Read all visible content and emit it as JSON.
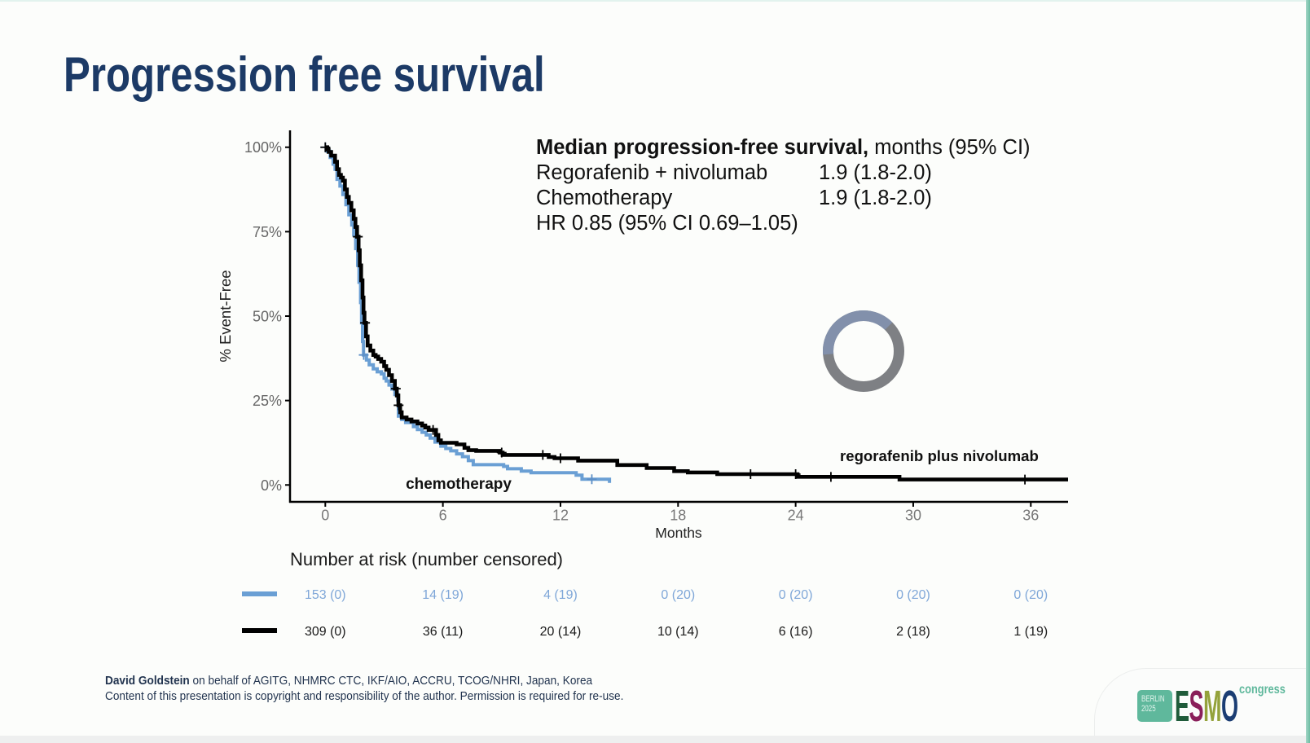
{
  "chart_data": {
    "type": "line",
    "subtype": "kaplan-meier",
    "title": "Progression free survival",
    "xlabel": "Months",
    "ylabel": "% Event-Free",
    "xlim": [
      -1.8,
      37.9
    ],
    "ylim": [
      -5,
      105
    ],
    "grid": false,
    "xtick_values": [
      0,
      6,
      12,
      18,
      24,
      30,
      36
    ],
    "xticks": [
      "0",
      "6",
      "12",
      "18",
      "24",
      "30",
      "36"
    ],
    "ytick_values": [
      0,
      25,
      50,
      75,
      100
    ],
    "yticks": [
      "0%",
      "25%",
      "50%",
      "75%",
      "100%"
    ],
    "series": [
      {
        "name": "chemotherapy",
        "color": "#6a9fd4",
        "x": [
          0,
          0.1,
          0.25,
          0.4,
          0.5,
          0.6,
          0.75,
          0.9,
          1.05,
          1.2,
          1.35,
          1.45,
          1.55,
          1.65,
          1.72,
          1.8,
          1.85,
          1.9,
          1.95,
          2.1,
          2.24,
          2.45,
          2.65,
          2.86,
          3.0,
          3.11,
          3.25,
          3.4,
          3.55,
          3.7,
          3.73,
          3.9,
          4.1,
          4.5,
          4.7,
          4.94,
          5.15,
          5.35,
          5.6,
          5.9,
          6.15,
          6.4,
          6.7,
          7.0,
          7.3,
          7.55,
          9.1,
          9.3,
          10.0,
          10.5,
          12.8,
          13.1,
          14.5
        ],
        "y": [
          100,
          98.8,
          97.0,
          95.0,
          93.5,
          90.5,
          88.5,
          86.0,
          83.0,
          80.0,
          77.0,
          74.0,
          70.0,
          65.0,
          60.0,
          54.0,
          48.0,
          42.5,
          38.5,
          37.0,
          35.6,
          34.4,
          33.5,
          32.9,
          31.6,
          30.8,
          29.6,
          28.4,
          26.8,
          25.2,
          20.4,
          19.4,
          18.5,
          17.3,
          16.4,
          15.6,
          14.8,
          13.9,
          12.7,
          11.5,
          10.8,
          10.1,
          9.2,
          8.4,
          7.2,
          6.0,
          5.5,
          4.8,
          4.1,
          3.6,
          2.9,
          1.7,
          0.6
        ],
        "end_x": 14.5,
        "censor_times": [
          0,
          1.96,
          13.6
        ]
      },
      {
        "name": "regorafenib plus nivolumab",
        "color": "#000000",
        "x": [
          0,
          0.1,
          0.17,
          0.3,
          0.5,
          0.6,
          0.7,
          0.8,
          0.9,
          1.0,
          1.1,
          1.2,
          1.33,
          1.45,
          1.54,
          1.62,
          1.7,
          1.76,
          1.83,
          1.9,
          1.95,
          2.0,
          2.08,
          2.16,
          2.3,
          2.45,
          2.57,
          2.7,
          2.85,
          3.0,
          3.11,
          3.25,
          3.4,
          3.55,
          3.65,
          3.73,
          3.82,
          3.9,
          4.15,
          4.4,
          4.7,
          4.94,
          5.1,
          5.27,
          5.65,
          5.77,
          5.9,
          6.7,
          7.1,
          7.3,
          7.7,
          8.9,
          9.05,
          11.4,
          11.7,
          12.9,
          14.9,
          16.4,
          17.8,
          18.5,
          20.0,
          24.1,
          29.3
        ],
        "y": [
          100,
          99.3,
          98.6,
          97.5,
          95.7,
          93.5,
          91.8,
          91.0,
          90.1,
          87.5,
          85.3,
          83.5,
          81.3,
          78.8,
          76.4,
          73.5,
          69.5,
          65.0,
          60.6,
          55.5,
          51.0,
          48.0,
          44.0,
          41.3,
          39.8,
          38.5,
          38.0,
          37.3,
          36.5,
          35.2,
          34.1,
          32.5,
          30.8,
          28.5,
          26.5,
          23.6,
          21.5,
          20.0,
          19.4,
          18.8,
          18.2,
          17.6,
          17.0,
          16.3,
          14.8,
          13.2,
          12.5,
          12.0,
          11.0,
          10.3,
          10.1,
          9.6,
          8.9,
          8.3,
          7.9,
          7.2,
          5.9,
          5.0,
          4.1,
          3.7,
          3.2,
          2.4,
          1.6
        ],
        "end_x": 37.9,
        "censor_times": [
          0,
          1.66,
          2.03,
          3.6,
          3.74,
          5.5,
          9.0,
          11.1,
          12.0,
          21.7,
          24.0,
          25.8,
          35.7
        ]
      }
    ],
    "annotation": {
      "heading_bold": "Median progression-free survival,",
      "heading_rest": " months (95% CI)",
      "rows": [
        {
          "label": "Regorafenib + nivolumab",
          "value": "1.9 (1.8-2.0)"
        },
        {
          "label": "Chemotherapy",
          "value": "1.9 (1.8-2.0)"
        }
      ],
      "hr": "HR 0.85 (95% CI 0.69–1.05)"
    }
  },
  "risk_table": {
    "title": "Number at risk (number censored)",
    "rows": [
      {
        "color": "#6a9fd4",
        "text_color": "#7fa7d8",
        "values": [
          "153 (0)",
          "14 (19)",
          "4 (19)",
          "0 (20)",
          "0 (20)",
          "0 (20)",
          "0 (20)"
        ]
      },
      {
        "color": "#000000",
        "text_color": "#1a1a1a",
        "values": [
          "309 (0)",
          "36 (11)",
          "20 (14)",
          "10 (14)",
          "6 (16)",
          "2 (18)",
          "1 (19)"
        ]
      }
    ]
  },
  "footer": {
    "author": "David Goldstein",
    "affiliation": " on behalf of AGITG, NHMRC CTC, IKF/AIO, ACCRU, TCOG/NHRI, Japan, Korea",
    "copyright": "Content of this presentation is copyright and responsibility of the author. Permission is required for re-use."
  },
  "logo": {
    "city": "BERLIN",
    "year": "2025",
    "letters": [
      "E",
      "S",
      "M",
      "O"
    ],
    "letter_colors": [
      "#1f5b3a",
      "#8a1f5a",
      "#94a23b",
      "#1b3d73"
    ],
    "suffix": "congress"
  },
  "icons": {
    "spinner": "loading-spinner-icon"
  }
}
